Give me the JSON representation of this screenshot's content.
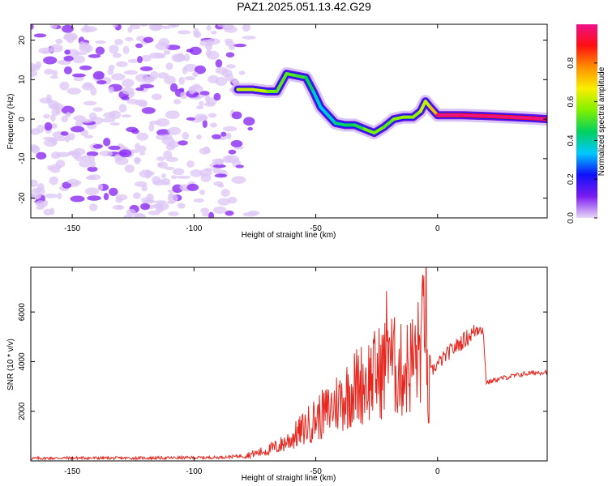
{
  "figure": {
    "title": "PAZ1.2025.051.13.42.G29"
  },
  "chart_data": [
    {
      "type": "heatmap",
      "title": "PAZ1.2025.051.13.42.G29",
      "xlabel": "Height of straight line (km)",
      "ylabel": "Frequency (Hz)",
      "xlim": [
        -167,
        45
      ],
      "ylim": [
        -25,
        24
      ],
      "xticks": [
        -150,
        -100,
        -50,
        0
      ],
      "yticks": [
        -20,
        -10,
        0,
        10,
        20
      ],
      "grid": false,
      "colorbar": {
        "label": "Normalized spectral amplitude",
        "range": [
          0,
          1
        ],
        "ticks": [
          0.0,
          0.2,
          0.4,
          0.6,
          0.8
        ],
        "colormap": [
          "#e8d8f6",
          "#7b1cf0",
          "#1010f8",
          "#00c8ff",
          "#00d060",
          "#80f000",
          "#f8f000",
          "#ff9000",
          "#ff1010",
          "#f0108a"
        ]
      },
      "noise_region": {
        "x": [
          -167,
          -80
        ],
        "amplitude": 0.15
      },
      "signal_track": {
        "x": [
          -82,
          -76,
          -70,
          -66,
          -62,
          -58,
          -54,
          -51,
          -48,
          -45,
          -42,
          -38,
          -34,
          -30,
          -26,
          -22,
          -18,
          -14,
          -10,
          -7,
          -5,
          -3,
          0,
          10,
          20,
          30,
          40,
          45
        ],
        "frequency": [
          7.5,
          7.5,
          7,
          7,
          11.5,
          11,
          10.5,
          7,
          3,
          1,
          -1,
          -1.5,
          -1.5,
          -2.5,
          -3.5,
          -2,
          0,
          0.5,
          0.5,
          2,
          4.5,
          3,
          1,
          1,
          0.8,
          0.5,
          0.2,
          0
        ],
        "amplitude": [
          0.6,
          0.65,
          0.6,
          0.5,
          0.55,
          0.5,
          0.5,
          0.4,
          0.35,
          0.35,
          0.4,
          0.45,
          0.45,
          0.5,
          0.6,
          0.5,
          0.55,
          0.6,
          0.55,
          0.6,
          0.65,
          0.6,
          0.85,
          0.9,
          0.88,
          0.9,
          0.92,
          0.95
        ]
      }
    },
    {
      "type": "line",
      "xlabel": "Height of straight line (km)",
      "ylabel": "SNR (10 * v/v)",
      "xlim": [
        -167,
        45
      ],
      "ylim": [
        0,
        7800
      ],
      "xticks": [
        -150,
        -100,
        -50,
        0
      ],
      "yticks": [
        2000,
        4000,
        6000
      ],
      "grid": false,
      "series": [
        {
          "color": "#e8261e",
          "x": [
            -167,
            -150,
            -130,
            -110,
            -90,
            -80,
            -75,
            -70,
            -65,
            -60,
            -55,
            -50,
            -45,
            -42,
            -38,
            -35,
            -30,
            -25,
            -22,
            -20,
            -19,
            -17,
            -15,
            -12,
            -10,
            -8,
            -6,
            -5,
            -4,
            -3,
            -1,
            0,
            5,
            10,
            15,
            18,
            19,
            20,
            25,
            30,
            35,
            40,
            45
          ],
          "values": [
            100,
            120,
            110,
            120,
            140,
            200,
            300,
            420,
            600,
            900,
            1300,
            1700,
            2000,
            2300,
            2600,
            2900,
            3200,
            3500,
            3700,
            5500,
            4000,
            3700,
            3600,
            3800,
            4000,
            4300,
            5000,
            7900,
            1500,
            3500,
            3800,
            3900,
            4400,
            4800,
            5200,
            5500,
            4800,
            3150,
            3300,
            3400,
            3500,
            3550,
            3600
          ]
        }
      ]
    }
  ]
}
